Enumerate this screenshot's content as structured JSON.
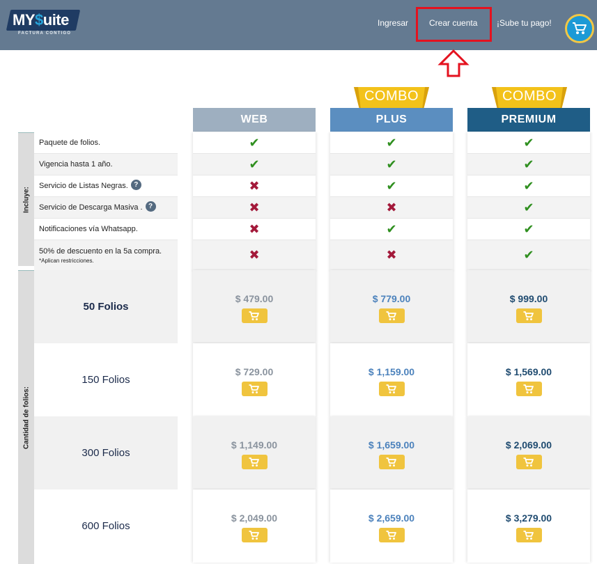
{
  "header": {
    "logo_text_a": "MY",
    "logo_text_b": "$",
    "logo_text_c": "uite",
    "logo_tagline": "FACTURA CONTIGO",
    "nav": {
      "ingresar": "Ingresar",
      "crear_cuenta": "Crear cuenta",
      "sube_pago": "¡Sube tu pago!"
    },
    "cart_icon": "shopping-cart-icon",
    "colors": {
      "bar": "#647a91",
      "highlight": "#e4121f",
      "cart": "#1c9ad6",
      "cart_ring": "#f2c744"
    }
  },
  "badges": {
    "plus": "COMBO",
    "premium": "COMBO"
  },
  "plans": {
    "web": "WEB",
    "plus": "PLUS",
    "premium": "PREMIUM"
  },
  "side_labels": {
    "incluye": "Incluye:",
    "cantidad": "Cantidad de folios:"
  },
  "features": [
    {
      "label": "Paquete de folios.",
      "help": false,
      "web": "check",
      "plus": "check",
      "premium": "check"
    },
    {
      "label": "Vigencia hasta 1 año.",
      "help": false,
      "web": "check",
      "plus": "check",
      "premium": "check"
    },
    {
      "label": "Servicio de Listas Negras.",
      "help": true,
      "web": "cross",
      "plus": "check",
      "premium": "check"
    },
    {
      "label": "Servicio de Descarga Masiva .",
      "help": true,
      "web": "cross",
      "plus": "cross",
      "premium": "check"
    },
    {
      "label": "Notificaciones vía Whatsapp.",
      "help": false,
      "web": "cross",
      "plus": "check",
      "premium": "check"
    },
    {
      "label": "50% de descuento en la 5a compra.",
      "note": "*Aplican restricciones.",
      "help": false,
      "web": "cross",
      "plus": "cross",
      "premium": "check"
    }
  ],
  "help_glyph": "?",
  "folios": [
    {
      "label": "50 Folios",
      "web": "$ 479.00",
      "plus": "$ 779.00",
      "premium": "$ 999.00"
    },
    {
      "label": "150 Folios",
      "web": "$ 729.00",
      "plus": "$ 1,159.00",
      "premium": "$ 1,569.00"
    },
    {
      "label": "300 Folios",
      "web": "$ 1,149.00",
      "plus": "$ 1,659.00",
      "premium": "$ 2,069.00"
    },
    {
      "label": "600 Folios",
      "web": "$ 2,049.00",
      "plus": "$ 2,659.00",
      "premium": "$ 3,279.00"
    }
  ],
  "colors": {
    "web": "#9eafc0",
    "plus": "#5b8ec0",
    "premium": "#1f5d86",
    "check": "#2f8f1f",
    "cross": "#a3193a",
    "buy_button": "#f0c43e",
    "badge": "#f3c21a"
  }
}
